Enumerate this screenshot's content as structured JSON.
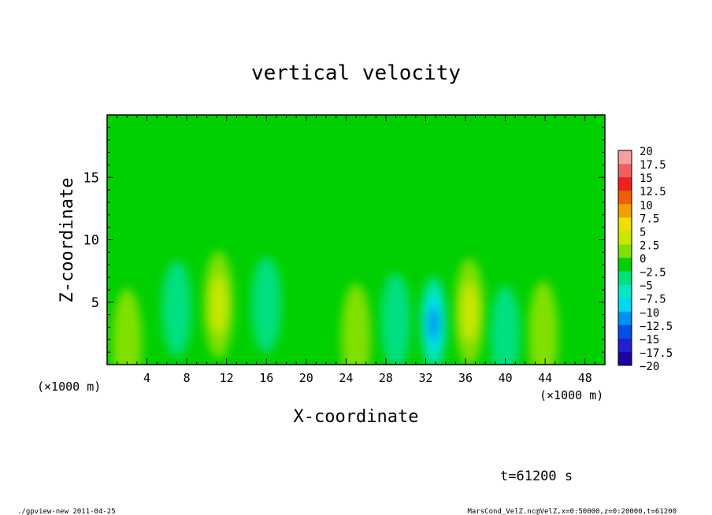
{
  "chart_data": {
    "type": "heatmap",
    "title": "vertical velocity",
    "xlabel": "X-coordinate",
    "ylabel": "Z-coordinate",
    "x_unit_left": "(×1000 m)",
    "x_unit_right": "(×1000 m)",
    "xlim": [
      0,
      50
    ],
    "ylim": [
      0,
      20
    ],
    "x_ticks": [
      4,
      8,
      12,
      16,
      20,
      24,
      28,
      32,
      36,
      40,
      44,
      48
    ],
    "y_ticks": [
      5,
      10,
      15
    ],
    "colorbar": {
      "labels": [
        "20",
        "17.5",
        "15",
        "12.5",
        "10",
        "7.5",
        "5",
        "2.5",
        "0",
        "−2.5",
        "−5",
        "−7.5",
        "−10",
        "−12.5",
        "−15",
        "−17.5",
        "−20"
      ],
      "colors": [
        "#f4a0a0",
        "#f06060",
        "#ee2020",
        "#ee6000",
        "#f0a000",
        "#f0e000",
        "#c8e800",
        "#80e000",
        "#00d000",
        "#00e080",
        "#00e8c8",
        "#00d8f0",
        "#0090f0",
        "#0050e8",
        "#2020d0",
        "#2000a0",
        "#7000c8"
      ]
    },
    "background_value": 0,
    "features": [
      {
        "kind": "updraft",
        "x": 11.2,
        "z": 4.8,
        "peak": 5.5
      },
      {
        "kind": "updraft",
        "x": 36.4,
        "z": 4.2,
        "peak": 5
      },
      {
        "kind": "updraft",
        "x": 43.8,
        "z": 2.4,
        "peak": 2.5
      },
      {
        "kind": "updraft",
        "x": 25.0,
        "z": 2.2,
        "peak": 2.5
      },
      {
        "kind": "updraft",
        "x": 2.0,
        "z": 1.8,
        "peak": 2
      },
      {
        "kind": "downdraft",
        "x": 32.8,
        "z": 3.3,
        "peak": -10
      },
      {
        "kind": "downdraft",
        "x": 7.0,
        "z": 4.5,
        "peak": -3
      },
      {
        "kind": "downdraft",
        "x": 40.0,
        "z": 2.5,
        "peak": -3
      },
      {
        "kind": "downdraft",
        "x": 16.0,
        "z": 4.8,
        "peak": -3
      },
      {
        "kind": "downdraft",
        "x": 29.0,
        "z": 3.5,
        "peak": -2.5
      }
    ]
  },
  "time_label": "t=61200 s",
  "footer_left": "./gpview-new   2011-04-25",
  "footer_right": "MarsCond_VelZ.nc@VelZ,x=0:50000,z=0:20000,t=61200"
}
